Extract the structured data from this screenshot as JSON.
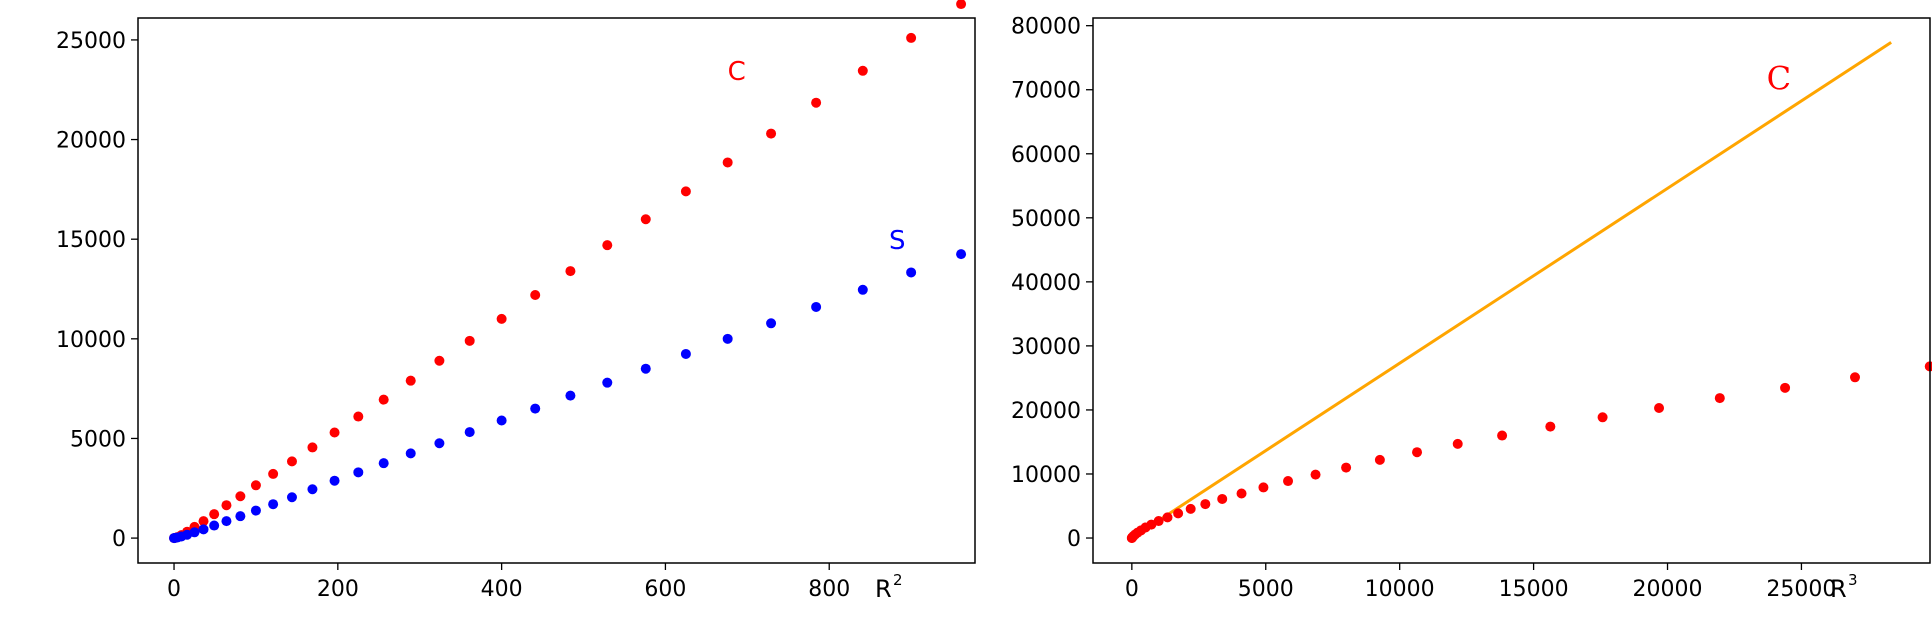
{
  "chart_data": [
    {
      "type": "scatter",
      "xlabel": "R",
      "xlabel_superscript": "2",
      "ylabel": "",
      "xlim": [
        -44,
        978
      ],
      "ylim": [
        -1250,
        26100
      ],
      "x_ticks": [
        0,
        200,
        400,
        600,
        800
      ],
      "y_ticks": [
        0,
        5000,
        10000,
        15000,
        20000,
        25000
      ],
      "grid": false,
      "series": [
        {
          "name": "C",
          "color": "#ff0000",
          "label_position": {
            "x": 676,
            "y": 23000
          },
          "x": [
            0,
            1,
            4,
            9,
            16,
            25,
            36,
            49,
            64,
            81,
            100,
            121,
            144,
            169,
            196,
            225,
            256,
            289,
            324,
            361,
            400,
            441,
            484,
            529,
            576,
            625,
            676,
            729,
            784,
            841,
            900,
            961
          ],
          "y": [
            0,
            6,
            50,
            150,
            320,
            560,
            850,
            1200,
            1650,
            2100,
            2650,
            3220,
            3850,
            4550,
            5300,
            6100,
            6950,
            7900,
            8900,
            9900,
            11000,
            12200,
            13400,
            14700,
            16000,
            17400,
            18850,
            20300,
            21850,
            23450,
            25100,
            26800
          ]
        },
        {
          "name": "S",
          "color": "#0000ff",
          "label_position": {
            "x": 873,
            "y": 14500
          },
          "x": [
            0,
            1,
            4,
            9,
            16,
            25,
            36,
            49,
            64,
            81,
            100,
            121,
            144,
            169,
            196,
            225,
            256,
            289,
            324,
            361,
            400,
            441,
            484,
            529,
            576,
            625,
            676,
            729,
            784,
            841,
            900,
            961
          ],
          "y": [
            0,
            4,
            28,
            80,
            170,
            290,
            440,
            630,
            850,
            1100,
            1380,
            1700,
            2050,
            2450,
            2880,
            3300,
            3760,
            4250,
            4760,
            5320,
            5900,
            6500,
            7150,
            7800,
            8500,
            9240,
            10000,
            10780,
            11600,
            12460,
            13330,
            14250
          ]
        }
      ]
    },
    {
      "type": "scatter",
      "xlabel": "R",
      "xlabel_superscript": "3",
      "ylabel": "",
      "xlim": [
        -1450,
        29800
      ],
      "ylim": [
        -3900,
        81200
      ],
      "x_ticks": [
        0,
        5000,
        10000,
        15000,
        20000,
        25000
      ],
      "y_ticks": [
        0,
        10000,
        20000,
        30000,
        40000,
        50000,
        60000,
        70000,
        80000
      ],
      "grid": false,
      "series": [
        {
          "name": "C",
          "color": "#ff0000",
          "label_position": {
            "x": 23700,
            "y": 70000
          },
          "x": [
            0,
            1,
            8,
            27,
            64,
            125,
            216,
            343,
            512,
            729,
            1000,
            1331,
            1728,
            2197,
            2744,
            3375,
            4096,
            4913,
            5832,
            6859,
            8000,
            9261,
            10648,
            12167,
            13824,
            15625,
            17576,
            19683,
            21952,
            24389,
            27000,
            29791
          ],
          "y": [
            0,
            6,
            50,
            150,
            320,
            560,
            850,
            1200,
            1650,
            2100,
            2650,
            3220,
            3850,
            4550,
            5300,
            6100,
            6950,
            7900,
            8900,
            9900,
            11000,
            12200,
            13400,
            14700,
            16000,
            17400,
            18850,
            20300,
            21850,
            23450,
            25100,
            26800
          ]
        }
      ],
      "fit_line": {
        "color": "#ffa500",
        "x": [
          0,
          28350
        ],
        "y": [
          0,
          77400
        ]
      }
    }
  ]
}
